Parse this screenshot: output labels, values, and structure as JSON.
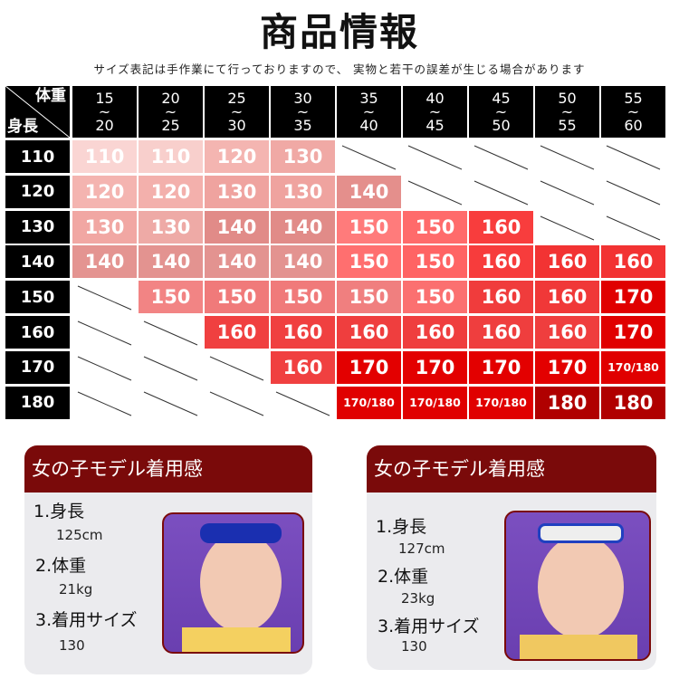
{
  "title": "商品情報",
  "note": "サイズ表記は手作業にて行っておりますので、 実物と若干の誤差が生じる場合があります",
  "table": {
    "corner_weight": "体重",
    "corner_height": "身長",
    "weights": [
      [
        "15",
        "20"
      ],
      [
        "20",
        "25"
      ],
      [
        "25",
        "30"
      ],
      [
        "30",
        "35"
      ],
      [
        "35",
        "40"
      ],
      [
        "40",
        "45"
      ],
      [
        "45",
        "50"
      ],
      [
        "50",
        "55"
      ],
      [
        "55",
        "60"
      ]
    ],
    "tilde": "~",
    "heights": [
      "110",
      "120",
      "130",
      "140",
      "150",
      "160",
      "170",
      "180"
    ],
    "cells": [
      [
        "110",
        "110",
        "120",
        "130",
        "",
        "",
        "",
        "",
        ""
      ],
      [
        "120",
        "120",
        "130",
        "130",
        "140",
        "",
        "",
        "",
        ""
      ],
      [
        "130",
        "130",
        "140",
        "140",
        "150",
        "150",
        "160",
        "",
        ""
      ],
      [
        "140",
        "140",
        "140",
        "140",
        "150",
        "150",
        "160",
        "160",
        "160"
      ],
      [
        "",
        "150",
        "150",
        "150",
        "150",
        "150",
        "160",
        "160",
        "170"
      ],
      [
        "",
        "",
        "160",
        "160",
        "160",
        "160",
        "160",
        "160",
        "170"
      ],
      [
        "",
        "",
        "",
        "160",
        "170",
        "170",
        "170",
        "170",
        "170/180"
      ],
      [
        "",
        "",
        "",
        "",
        "170/180",
        "170/180",
        "170/180",
        "180",
        "180"
      ]
    ],
    "colors": [
      [
        "#fad5d3",
        "#f8cfcc",
        "#f4b5b1",
        "#f0a9a5",
        "",
        "",
        "",
        "",
        ""
      ],
      [
        "#f4b4b0",
        "#f3b0ac",
        "#efa39f",
        "#efa39f",
        "#e48f8c",
        "",
        "",
        "",
        ""
      ],
      [
        "#f1a7a3",
        "#eeaaa6",
        "#e18b88",
        "#e18b88",
        "#ff7b7b",
        "#ff6b6b",
        "#f83d3d",
        "",
        ""
      ],
      [
        "#e49491",
        "#e39390",
        "#e39390",
        "#e39390",
        "#ff6f6f",
        "#ff6464",
        "#f73c3c",
        "#f23333",
        "#f23333"
      ],
      [
        "",
        "#f28484",
        "#f07a7a",
        "#f07a7a",
        "#f07f7f",
        "#fb7070",
        "#f03c3c",
        "#f03838",
        "#e00000"
      ],
      [
        "",
        "",
        "#f04040",
        "#f04040",
        "#ef3e3e",
        "#ef3e3e",
        "#ef3e3e",
        "#ef3e3e",
        "#e00000"
      ],
      [
        "",
        "",
        "",
        "#f04040",
        "#e30000",
        "#e30000",
        "#e30000",
        "#e30000",
        "#e00000"
      ],
      [
        "",
        "",
        "",
        "",
        "#e00000",
        "#e00000",
        "#e00000",
        "#b00000",
        "#b00000"
      ]
    ]
  },
  "models": [
    {
      "header": "女の子モデル着用感",
      "label1": "1.身長",
      "value1": "125cm",
      "label2": "2.体重",
      "value2": "21kg",
      "label3": "3.着用サイズ",
      "value3": "130"
    },
    {
      "header": "女の子モデル着用感",
      "label1": "1.身長",
      "value1": "127cm",
      "label2": "2.体重",
      "value2": "23kg",
      "label3": "3.着用サイズ",
      "value3": "130"
    }
  ]
}
